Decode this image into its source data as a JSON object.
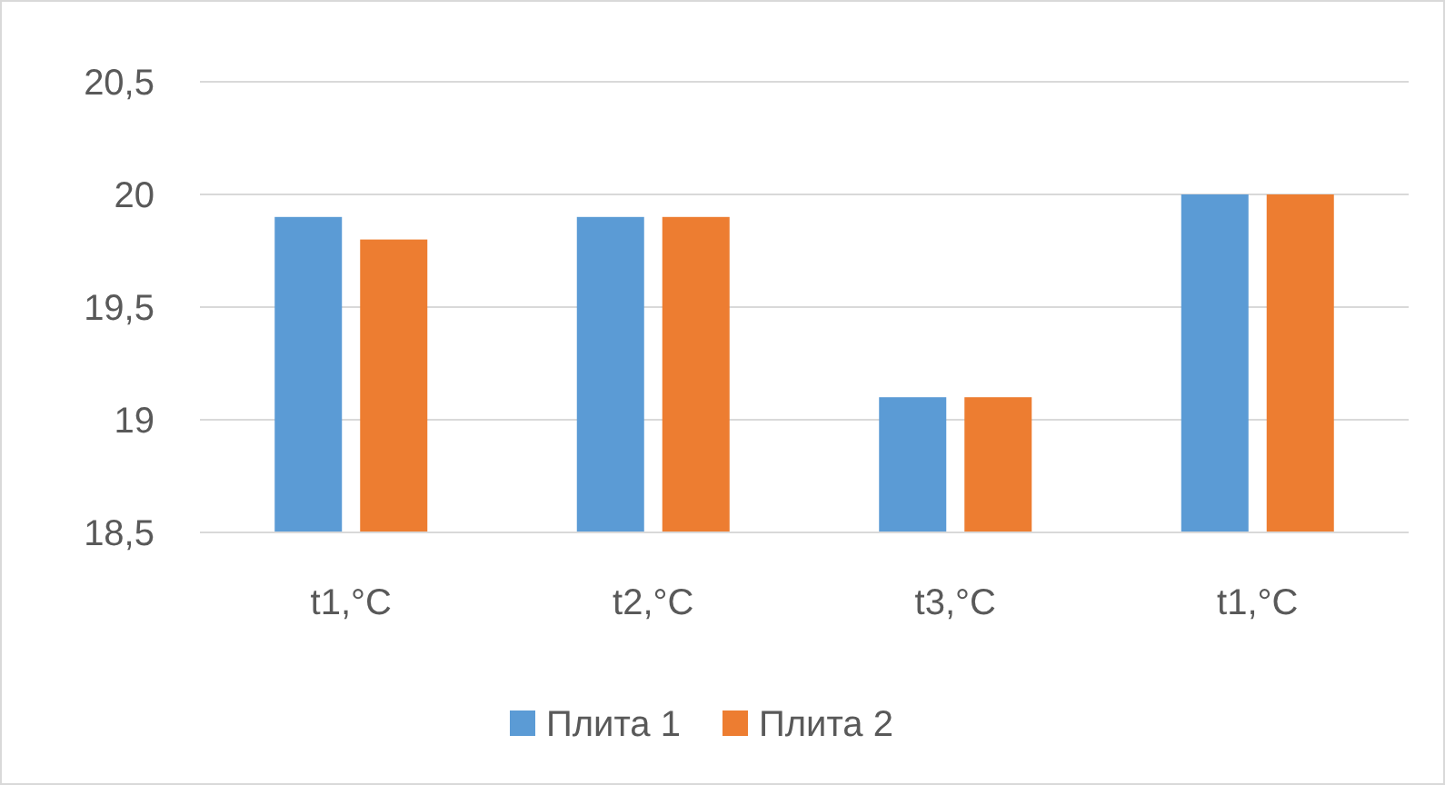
{
  "chart_data": {
    "type": "bar",
    "categories": [
      "t1,°C",
      "t2,°C",
      "t3,°C",
      "t1,°C"
    ],
    "series": [
      {
        "name": "Плита 1",
        "color": "#5b9bd5",
        "values": [
          19.9,
          19.9,
          19.1,
          20.0
        ]
      },
      {
        "name": "Плита 2",
        "color": "#ed7d31",
        "values": [
          19.8,
          19.9,
          19.1,
          20.0
        ]
      }
    ],
    "ylim": [
      18.5,
      20.5
    ],
    "yticks": [
      {
        "value": 18.5,
        "label": "18,5"
      },
      19,
      {
        "value": 19.5,
        "label": "19,5"
      },
      20,
      {
        "value": 20.5,
        "label": "20,5"
      }
    ],
    "grid": "y",
    "legend": "bottom"
  }
}
